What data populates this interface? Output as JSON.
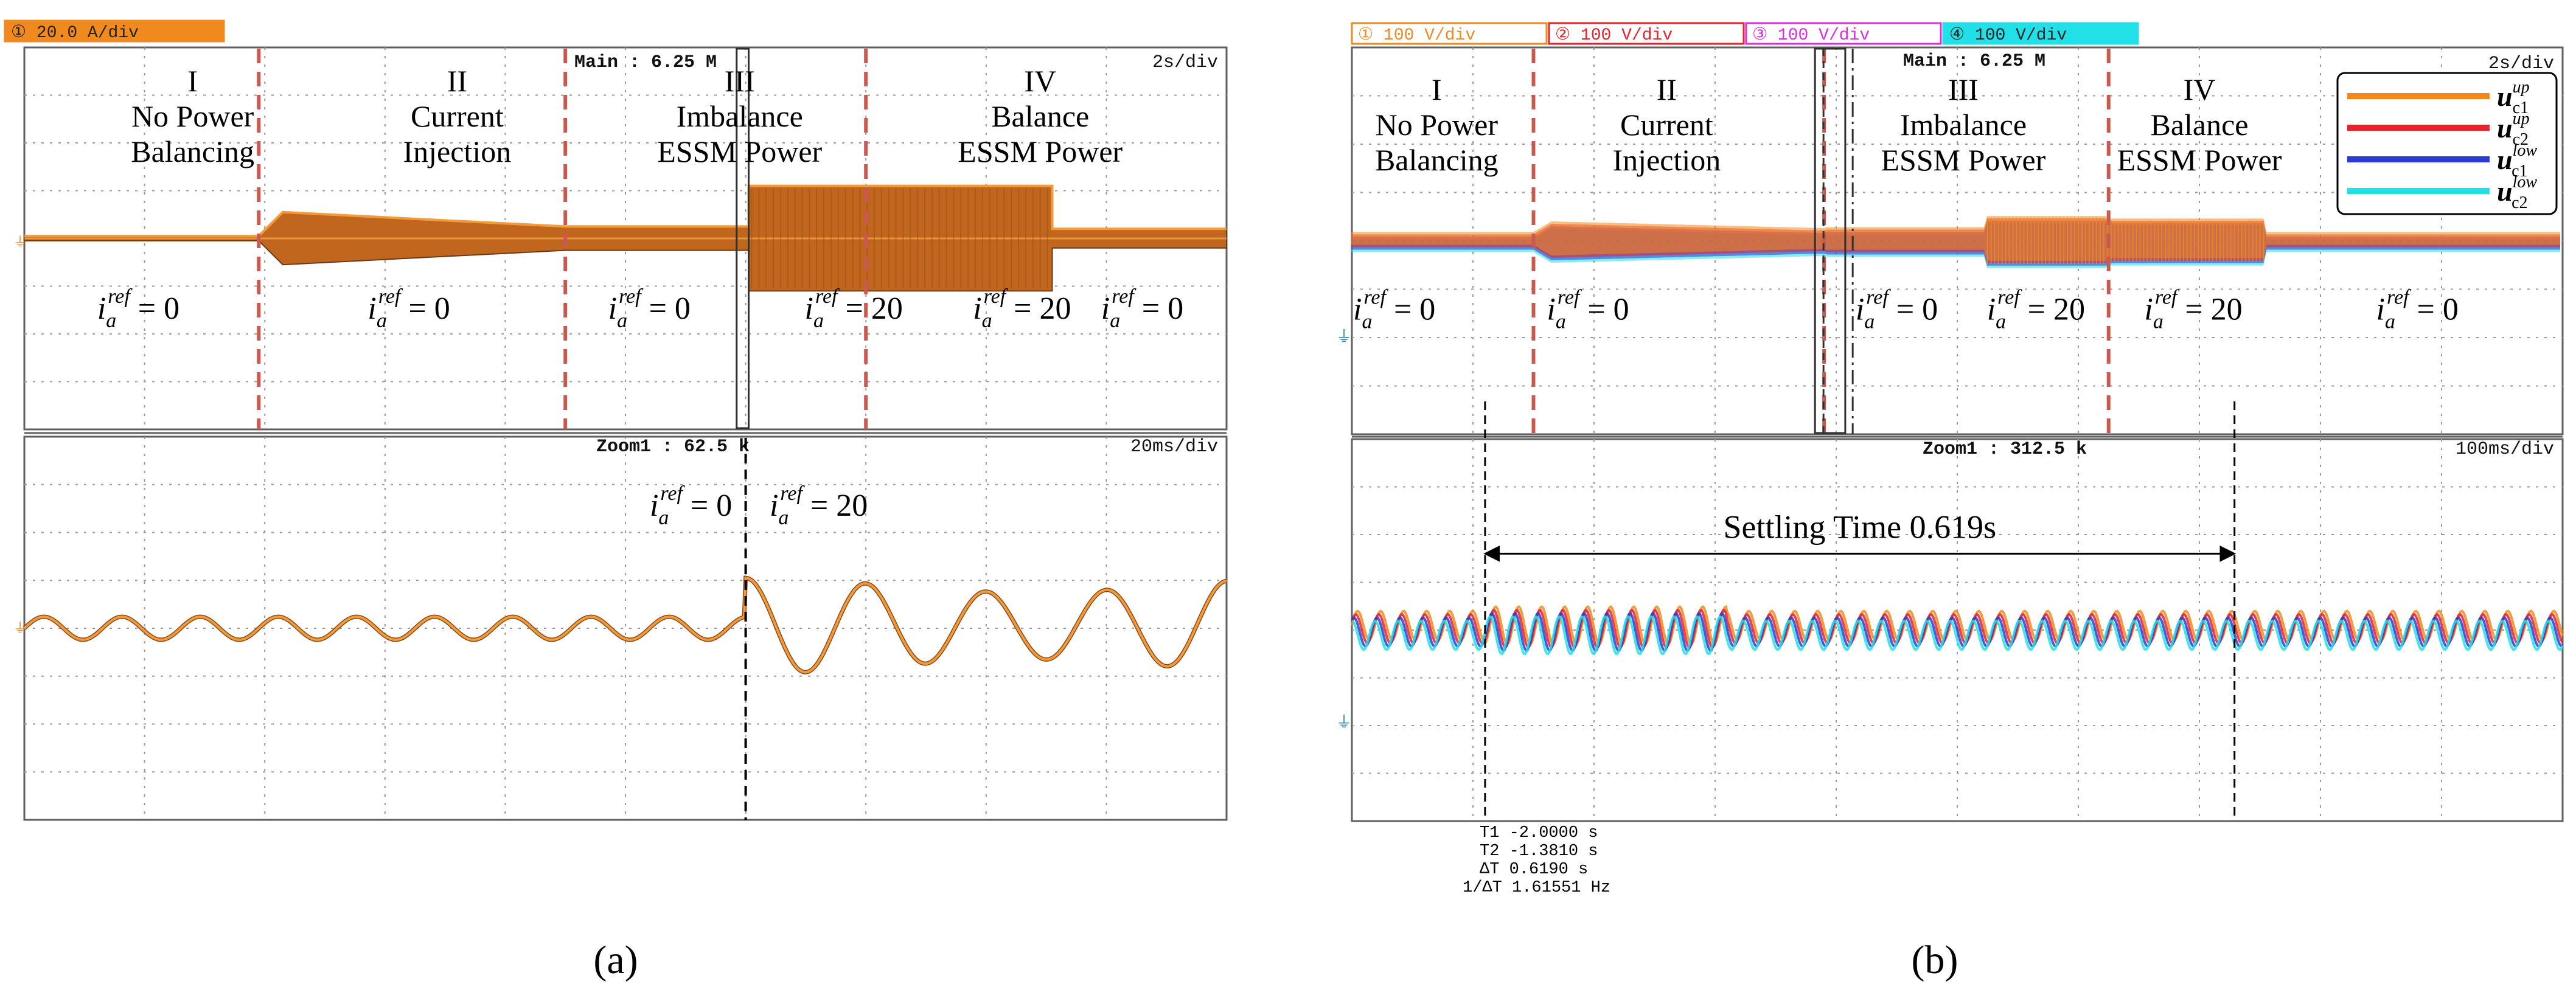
{
  "figure": {
    "panel_a_label": "(a)",
    "panel_b_label": "(b)"
  },
  "chart_data": [
    {
      "type": "line",
      "panel": "a",
      "title": "",
      "channel_badges": [
        {
          "num": "①",
          "text": "20.0 A/div",
          "color": "#f08a1e"
        }
      ],
      "main": {
        "header": "Main : 6.25 M",
        "timebase": "2s/div",
        "xlim": [
          0,
          20
        ],
        "ylim": [
          -4,
          4
        ],
        "grid": true,
        "phases": [
          {
            "roman": "I",
            "line1": "No Power",
            "line2": "Balancing",
            "iref": "0",
            "center_s": 2.8
          },
          {
            "roman": "II",
            "line1": "Current",
            "line2": "Injection",
            "iref": "0",
            "center_s": 7.2
          },
          {
            "roman": "III",
            "line1": "Imbalance",
            "line2": "ESSM Power",
            "iref": "0",
            "center_s": 11.9
          },
          {
            "roman": "IV",
            "line1": "Balance",
            "line2": "ESSM Power",
            "iref": "0",
            "center_s": 16.9
          }
        ],
        "extra_iref": [
          {
            "value": "20",
            "center_s": 14.0
          },
          {
            "value": "20",
            "center_s": 16.8
          }
        ],
        "boundaries_s": [
          3.9,
          9.0,
          14.0
        ],
        "zoom_window_s": [
          11.85,
          12.05
        ],
        "series": [
          {
            "name": "i_a",
            "color": "#f08a1e",
            "envelope": [
              [
                0,
                0.05
              ],
              [
                3.9,
                0.05
              ],
              [
                4.3,
                0.55
              ],
              [
                9.0,
                0.25
              ],
              [
                12.05,
                0.25
              ],
              [
                12.05,
                1.1
              ],
              [
                17.1,
                1.1
              ],
              [
                17.1,
                0.2
              ],
              [
                20,
                0.2
              ]
            ]
          }
        ]
      },
      "zoom": {
        "header": "Zoom1 : 62.5 k",
        "timebase": "20ms/div",
        "xlim": [
          0,
          200
        ],
        "ylim": [
          -4,
          4
        ],
        "grid": true,
        "step_ms": 120,
        "labels": [
          {
            "iref": "0",
            "side": "left"
          },
          {
            "iref": "20",
            "side": "right"
          }
        ],
        "series": [
          {
            "name": "i_a",
            "color": "#f08a1e",
            "before": {
              "period_ms": 13,
              "amplitude_div": 0.24
            },
            "after": {
              "period_ms": 20,
              "amplitude_div": 1.0,
              "offset_div": 0.05
            }
          }
        ]
      }
    },
    {
      "type": "line",
      "panel": "b",
      "title": "",
      "channel_badges": [
        {
          "num": "①",
          "text": "100 V/div",
          "color": "#f08a1e"
        },
        {
          "num": "②",
          "text": "100 V/div",
          "color": "#e8212a"
        },
        {
          "num": "③",
          "text": "100 V/div",
          "color": "#e02ce0"
        },
        {
          "num": "④",
          "text": "100 V/div",
          "color": "#22e0e8"
        }
      ],
      "legend": {
        "placement": "top-right",
        "entries": [
          {
            "sup": "up",
            "sub": "c1",
            "color": "#f08a1e"
          },
          {
            "sup": "up",
            "sub": "c2",
            "color": "#e8212a"
          },
          {
            "sup": "low",
            "sub": "c1",
            "color": "#2a3bd8"
          },
          {
            "sup": "low",
            "sub": "c2",
            "color": "#22e0e8"
          }
        ]
      },
      "main": {
        "header": "Main : 6.25 M",
        "timebase": "2s/div",
        "xlim": [
          0,
          20
        ],
        "ylim": [
          -4,
          4
        ],
        "grid": true,
        "phases": [
          {
            "roman": "I",
            "line1": "No Power",
            "line2": "Balancing",
            "iref": "0",
            "center_s": 1.4
          },
          {
            "roman": "II",
            "line1": "Current",
            "line2": "Injection",
            "iref": "0",
            "center_s": 5.2
          },
          {
            "roman": "III",
            "line1": "Imbalance",
            "line2": "ESSM Power",
            "iref": "0",
            "center_s": 10.1
          },
          {
            "roman": "IV",
            "line1": "Balance",
            "line2": "ESSM Power",
            "iref": "0",
            "center_s": 14.0
          }
        ],
        "extra_iref": [
          {
            "value": "20",
            "center_s": 11.3
          },
          {
            "value": "20",
            "center_s": 13.9
          },
          {
            "value": "0",
            "center_s": 17.6
          }
        ],
        "boundaries_s": [
          3.0,
          7.8,
          12.5
        ],
        "zoom_window_s": [
          7.65,
          8.15
        ],
        "series": [
          {
            "name": "u_c1^up",
            "color": "#f08a1e",
            "offset_div": 0.05
          },
          {
            "name": "u_c2^up",
            "color": "#e8212a",
            "offset_div": 0.0
          },
          {
            "name": "u_c1^low",
            "color": "#2a3bd8",
            "offset_div": -0.05
          },
          {
            "name": "u_c2^low",
            "color": "#22e0e8",
            "offset_div": -0.1
          }
        ]
      },
      "zoom": {
        "header": "Zoom1 : 312.5 k",
        "timebase": "100ms/div",
        "xlim": [
          0,
          1000
        ],
        "ylim": [
          -4,
          4
        ],
        "grid": true,
        "cursor_t1_ms": 110,
        "cursor_t2_ms": 729,
        "settling_label": "Settling Time 0.619s",
        "series_period_ms": 19,
        "series_amplitude_div": 0.3
      },
      "cursor_readout": [
        "T1 -2.0000 s",
        "T2 -1.3810 s",
        "ΔT  0.6190 s",
        "1/ΔT  1.61551 Hz"
      ]
    }
  ]
}
